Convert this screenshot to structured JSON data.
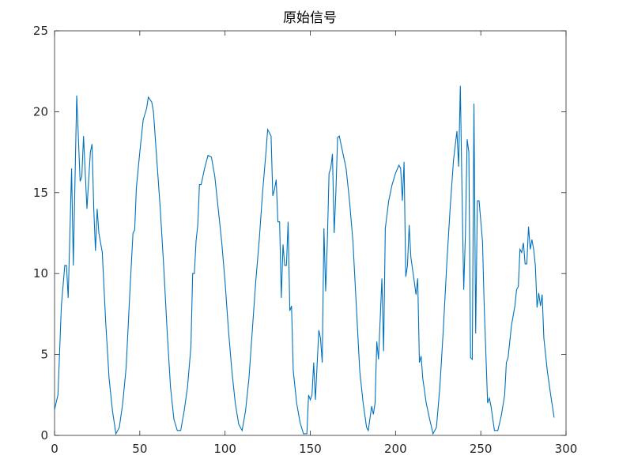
{
  "chart_data": {
    "type": "line",
    "title": "原始信号",
    "xlim": [
      0,
      300
    ],
    "xticks": [
      0,
      50,
      100,
      150,
      200,
      250,
      300
    ],
    "ylim": [
      0,
      25
    ],
    "yticks": [
      0,
      5,
      10,
      15,
      20,
      25
    ],
    "series": [
      {
        "color": "#0072bd",
        "x": [
          0,
          2,
          4,
          6,
          7,
          8,
          10,
          11,
          13,
          15,
          16,
          17,
          19,
          21,
          22,
          23,
          24,
          25,
          26,
          28,
          30,
          32,
          34,
          36,
          38,
          40,
          42,
          44,
          46,
          47,
          48,
          50,
          52,
          54,
          55,
          57,
          58,
          60,
          62,
          64,
          66,
          68,
          70,
          72,
          74,
          76,
          78,
          80,
          81,
          82,
          83,
          84,
          85,
          86,
          88,
          90,
          92,
          94,
          96,
          98,
          100,
          102,
          104,
          106,
          108,
          110,
          112,
          114,
          116,
          118,
          120,
          122,
          124,
          125,
          127,
          128,
          129,
          130,
          131,
          132,
          133,
          134,
          135,
          136,
          137,
          138,
          139,
          140,
          142,
          144,
          146,
          148,
          149,
          150,
          151,
          152,
          153,
          155,
          156,
          157,
          158,
          159,
          160,
          161,
          162,
          163,
          164,
          165,
          166,
          167,
          169,
          171,
          173,
          175,
          177,
          179,
          181,
          183,
          184,
          186,
          187,
          188,
          189,
          190,
          192,
          193,
          194,
          196,
          198,
          200,
          202,
          203,
          204,
          205,
          206,
          207,
          208,
          209,
          211,
          212,
          213,
          214,
          215,
          216,
          218,
          220,
          222,
          224,
          226,
          228,
          230,
          232,
          234,
          236,
          237,
          238,
          239,
          240,
          241,
          242,
          243,
          244,
          245,
          246,
          247,
          248,
          249,
          251,
          252,
          253,
          254,
          255,
          256,
          258,
          260,
          262,
          264,
          265,
          266,
          268,
          270,
          271,
          272,
          273,
          274,
          275,
          276,
          277,
          278,
          279,
          280,
          281,
          282,
          283,
          284,
          285,
          286,
          287,
          289,
          291,
          293
        ],
        "values": [
          1.6,
          2.5,
          8,
          10.5,
          10.5,
          8.5,
          16.5,
          10.5,
          21,
          15.7,
          16,
          18.5,
          14,
          17.5,
          18,
          14,
          11.4,
          14,
          12.5,
          11.3,
          7,
          3.5,
          1.5,
          0.1,
          0.5,
          2,
          4.2,
          8.5,
          12.5,
          12.7,
          15.3,
          17.5,
          19.5,
          20.2,
          20.9,
          20.6,
          20,
          17,
          14,
          10.5,
          6.5,
          3,
          1,
          0.3,
          0.3,
          1.5,
          3,
          5.5,
          10,
          10,
          12,
          13,
          15.5,
          15.5,
          16.5,
          17.3,
          17.2,
          16,
          14,
          12,
          9.5,
          6.5,
          4,
          2,
          0.7,
          0.3,
          1.5,
          3.5,
          6.5,
          9.5,
          12,
          15,
          17.5,
          18.9,
          18.5,
          14.8,
          15.2,
          15.8,
          13.2,
          13.2,
          8.5,
          11.8,
          10.5,
          10.5,
          13.2,
          7.7,
          8,
          4,
          2,
          0.8,
          0.1,
          0.1,
          2.5,
          2.2,
          2.5,
          4.5,
          2.2,
          6.5,
          6,
          4.5,
          12.8,
          8.9,
          12,
          16.2,
          16.5,
          17.4,
          12.5,
          15,
          18.4,
          18.5,
          17.5,
          16.5,
          14.5,
          12,
          8,
          4,
          2,
          0.5,
          0.3,
          1.8,
          1.3,
          2,
          5.8,
          4.7,
          9.7,
          5.2,
          12.8,
          14.5,
          15.5,
          16.2,
          16.7,
          16.5,
          14.5,
          16.9,
          9.8,
          10.5,
          13,
          11,
          9.5,
          8.7,
          9.7,
          4.5,
          4.9,
          3.5,
          2,
          1,
          0.1,
          0.5,
          3,
          6.5,
          10.5,
          14,
          17,
          18.8,
          16.6,
          21.6,
          15,
          9,
          12.5,
          18.3,
          17.5,
          4.8,
          4.7,
          20.5,
          6.3,
          14.5,
          14.5,
          12,
          8,
          5,
          2,
          2.3,
          1.8,
          0.3,
          0.3,
          1.2,
          2.5,
          4.5,
          4.8,
          6.8,
          8,
          9,
          9.2,
          11.5,
          11.3,
          11.9,
          10.6,
          10.6,
          12.9,
          11.5,
          12.1,
          11.5,
          10.5,
          7.9,
          8.8,
          8,
          8.7,
          6,
          4,
          2.5,
          1.1
        ]
      }
    ]
  }
}
